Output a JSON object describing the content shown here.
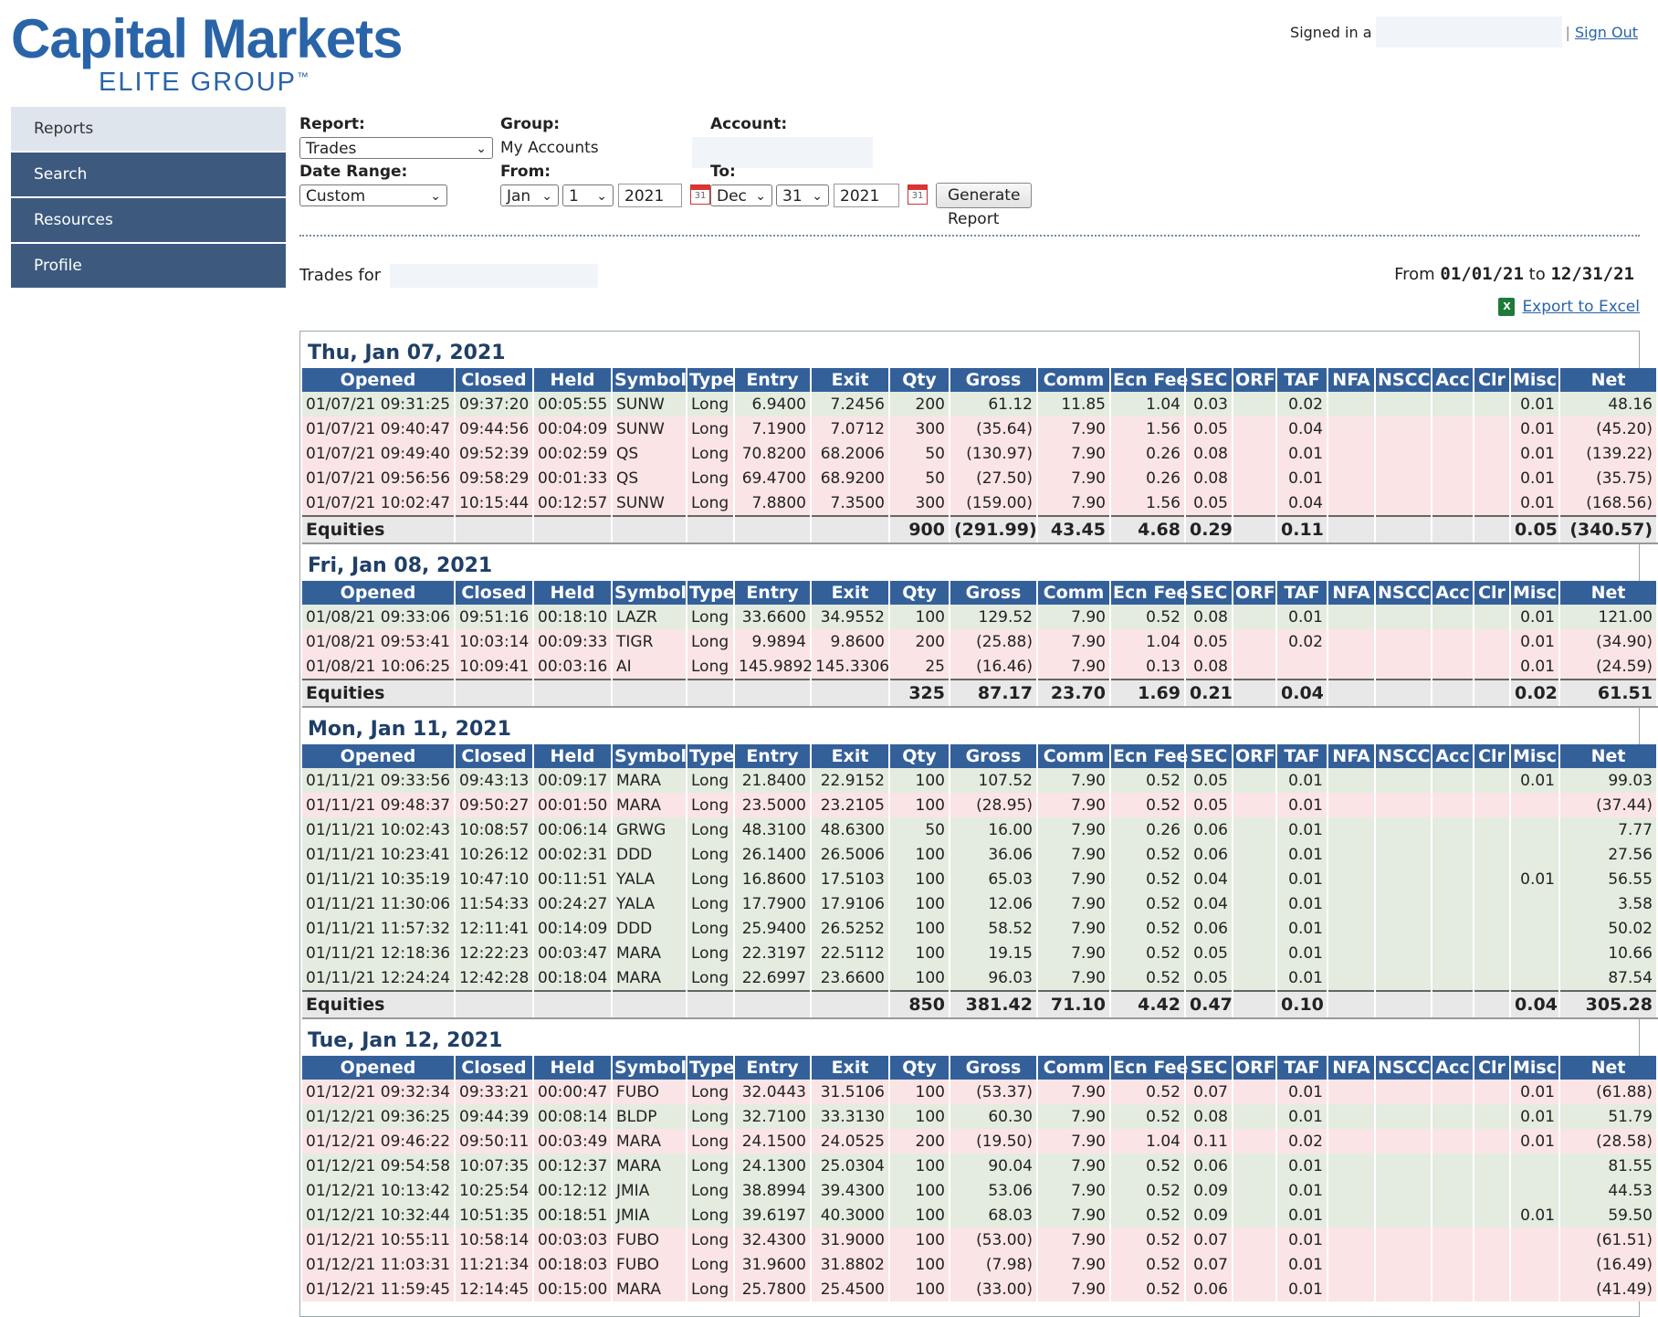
{
  "logo": {
    "main": "Capital Markets",
    "sub": "ELITE GROUP",
    "tm": "™"
  },
  "header": {
    "signed_in": "Signed in a",
    "sign_out": "Sign Out"
  },
  "nav": [
    {
      "label": "Reports",
      "active": true
    },
    {
      "label": "Search"
    },
    {
      "label": "Resources"
    },
    {
      "label": "Profile"
    }
  ],
  "form": {
    "report_label": "Report:",
    "report_value": "Trades",
    "group_label": "Group:",
    "group_value": "My Accounts",
    "account_label": "Account:",
    "date_range_label": "Date Range:",
    "date_range_value": "Custom",
    "from_label": "From:",
    "from_month": "Jan",
    "from_day": "1",
    "from_year": "2021",
    "to_label": "To:",
    "to_month": "Dec",
    "to_day": "31",
    "to_year": "2021",
    "calendar_day": "31",
    "generate_button": "Generate Report"
  },
  "summary": {
    "trades_for": "Trades for",
    "from_text": "From",
    "from_date": "01/01/21",
    "to_text": "to",
    "to_date": "12/31/21",
    "export": "Export to Excel"
  },
  "columns": [
    "Opened",
    "Closed",
    "Held",
    "Symbol",
    "Type",
    "Entry",
    "Exit",
    "Qty",
    "Gross",
    "Comm",
    "Ecn Fee",
    "SEC",
    "ORF",
    "TAF",
    "NFA",
    "NSCC",
    "Acc",
    "Clr",
    "Misc",
    "Net"
  ],
  "days": [
    {
      "title": "Thu, Jan 07, 2021",
      "rows": [
        [
          "01/07/21 09:31:25",
          "09:37:20",
          "00:05:55",
          "SUNW",
          "Long",
          "6.9400",
          "7.2456",
          "200",
          "61.12",
          "11.85",
          "1.04",
          "0.03",
          "",
          "0.02",
          "",
          "",
          "",
          "",
          "0.01",
          "48.16"
        ],
        [
          "01/07/21 09:40:47",
          "09:44:56",
          "00:04:09",
          "SUNW",
          "Long",
          "7.1900",
          "7.0712",
          "300",
          "(35.64)",
          "7.90",
          "1.56",
          "0.05",
          "",
          "0.04",
          "",
          "",
          "",
          "",
          "0.01",
          "(45.20)"
        ],
        [
          "01/07/21 09:49:40",
          "09:52:39",
          "00:02:59",
          "QS",
          "Long",
          "70.8200",
          "68.2006",
          "50",
          "(130.97)",
          "7.90",
          "0.26",
          "0.08",
          "",
          "0.01",
          "",
          "",
          "",
          "",
          "0.01",
          "(139.22)"
        ],
        [
          "01/07/21 09:56:56",
          "09:58:29",
          "00:01:33",
          "QS",
          "Long",
          "69.4700",
          "68.9200",
          "50",
          "(27.50)",
          "7.90",
          "0.26",
          "0.08",
          "",
          "0.01",
          "",
          "",
          "",
          "",
          "0.01",
          "(35.75)"
        ],
        [
          "01/07/21 10:02:47",
          "10:15:44",
          "00:12:57",
          "SUNW",
          "Long",
          "7.8800",
          "7.3500",
          "300",
          "(159.00)",
          "7.90",
          "1.56",
          "0.05",
          "",
          "0.04",
          "",
          "",
          "",
          "",
          "0.01",
          "(168.56)"
        ]
      ],
      "total": [
        "Equities",
        "",
        "",
        "",
        "",
        "",
        "",
        "900",
        "(291.99)",
        "43.45",
        "4.68",
        "0.29",
        "",
        "0.11",
        "",
        "",
        "",
        "",
        "0.05",
        "(340.57)"
      ]
    },
    {
      "title": "Fri, Jan 08, 2021",
      "rows": [
        [
          "01/08/21 09:33:06",
          "09:51:16",
          "00:18:10",
          "LAZR",
          "Long",
          "33.6600",
          "34.9552",
          "100",
          "129.52",
          "7.90",
          "0.52",
          "0.08",
          "",
          "0.01",
          "",
          "",
          "",
          "",
          "0.01",
          "121.00"
        ],
        [
          "01/08/21 09:53:41",
          "10:03:14",
          "00:09:33",
          "TIGR",
          "Long",
          "9.9894",
          "9.8600",
          "200",
          "(25.88)",
          "7.90",
          "1.04",
          "0.05",
          "",
          "0.02",
          "",
          "",
          "",
          "",
          "0.01",
          "(34.90)"
        ],
        [
          "01/08/21 10:06:25",
          "10:09:41",
          "00:03:16",
          "AI",
          "Long",
          "145.9892",
          "145.3306",
          "25",
          "(16.46)",
          "7.90",
          "0.13",
          "0.08",
          "",
          "",
          "",
          "",
          "",
          "",
          "0.01",
          "(24.59)"
        ]
      ],
      "total": [
        "Equities",
        "",
        "",
        "",
        "",
        "",
        "",
        "325",
        "87.17",
        "23.70",
        "1.69",
        "0.21",
        "",
        "0.04",
        "",
        "",
        "",
        "",
        "0.02",
        "61.51"
      ]
    },
    {
      "title": "Mon, Jan 11, 2021",
      "rows": [
        [
          "01/11/21 09:33:56",
          "09:43:13",
          "00:09:17",
          "MARA",
          "Long",
          "21.8400",
          "22.9152",
          "100",
          "107.52",
          "7.90",
          "0.52",
          "0.05",
          "",
          "0.01",
          "",
          "",
          "",
          "",
          "0.01",
          "99.03"
        ],
        [
          "01/11/21 09:48:37",
          "09:50:27",
          "00:01:50",
          "MARA",
          "Long",
          "23.5000",
          "23.2105",
          "100",
          "(28.95)",
          "7.90",
          "0.52",
          "0.05",
          "",
          "0.01",
          "",
          "",
          "",
          "",
          "",
          "(37.44)"
        ],
        [
          "01/11/21 10:02:43",
          "10:08:57",
          "00:06:14",
          "GRWG",
          "Long",
          "48.3100",
          "48.6300",
          "50",
          "16.00",
          "7.90",
          "0.26",
          "0.06",
          "",
          "0.01",
          "",
          "",
          "",
          "",
          "",
          "7.77"
        ],
        [
          "01/11/21 10:23:41",
          "10:26:12",
          "00:02:31",
          "DDD",
          "Long",
          "26.1400",
          "26.5006",
          "100",
          "36.06",
          "7.90",
          "0.52",
          "0.06",
          "",
          "0.01",
          "",
          "",
          "",
          "",
          "",
          "27.56"
        ],
        [
          "01/11/21 10:35:19",
          "10:47:10",
          "00:11:51",
          "YALA",
          "Long",
          "16.8600",
          "17.5103",
          "100",
          "65.03",
          "7.90",
          "0.52",
          "0.04",
          "",
          "0.01",
          "",
          "",
          "",
          "",
          "0.01",
          "56.55"
        ],
        [
          "01/11/21 11:30:06",
          "11:54:33",
          "00:24:27",
          "YALA",
          "Long",
          "17.7900",
          "17.9106",
          "100",
          "12.06",
          "7.90",
          "0.52",
          "0.04",
          "",
          "0.01",
          "",
          "",
          "",
          "",
          "",
          "3.58"
        ],
        [
          "01/11/21 11:57:32",
          "12:11:41",
          "00:14:09",
          "DDD",
          "Long",
          "25.9400",
          "26.5252",
          "100",
          "58.52",
          "7.90",
          "0.52",
          "0.06",
          "",
          "0.01",
          "",
          "",
          "",
          "",
          "",
          "50.02"
        ],
        [
          "01/11/21 12:18:36",
          "12:22:23",
          "00:03:47",
          "MARA",
          "Long",
          "22.3197",
          "22.5112",
          "100",
          "19.15",
          "7.90",
          "0.52",
          "0.05",
          "",
          "0.01",
          "",
          "",
          "",
          "",
          "",
          "10.66"
        ],
        [
          "01/11/21 12:24:24",
          "12:42:28",
          "00:18:04",
          "MARA",
          "Long",
          "22.6997",
          "23.6600",
          "100",
          "96.03",
          "7.90",
          "0.52",
          "0.05",
          "",
          "0.01",
          "",
          "",
          "",
          "",
          "",
          "87.54"
        ]
      ],
      "total": [
        "Equities",
        "",
        "",
        "",
        "",
        "",
        "",
        "850",
        "381.42",
        "71.10",
        "4.42",
        "0.47",
        "",
        "0.10",
        "",
        "",
        "",
        "",
        "0.04",
        "305.28"
      ]
    },
    {
      "title": "Tue, Jan 12, 2021",
      "rows": [
        [
          "01/12/21 09:32:34",
          "09:33:21",
          "00:00:47",
          "FUBO",
          "Long",
          "32.0443",
          "31.5106",
          "100",
          "(53.37)",
          "7.90",
          "0.52",
          "0.07",
          "",
          "0.01",
          "",
          "",
          "",
          "",
          "0.01",
          "(61.88)"
        ],
        [
          "01/12/21 09:36:25",
          "09:44:39",
          "00:08:14",
          "BLDP",
          "Long",
          "32.7100",
          "33.3130",
          "100",
          "60.30",
          "7.90",
          "0.52",
          "0.08",
          "",
          "0.01",
          "",
          "",
          "",
          "",
          "0.01",
          "51.79"
        ],
        [
          "01/12/21 09:46:22",
          "09:50:11",
          "00:03:49",
          "MARA",
          "Long",
          "24.1500",
          "24.0525",
          "200",
          "(19.50)",
          "7.90",
          "1.04",
          "0.11",
          "",
          "0.02",
          "",
          "",
          "",
          "",
          "0.01",
          "(28.58)"
        ],
        [
          "01/12/21 09:54:58",
          "10:07:35",
          "00:12:37",
          "MARA",
          "Long",
          "24.1300",
          "25.0304",
          "100",
          "90.04",
          "7.90",
          "0.52",
          "0.06",
          "",
          "0.01",
          "",
          "",
          "",
          "",
          "",
          "81.55"
        ],
        [
          "01/12/21 10:13:42",
          "10:25:54",
          "00:12:12",
          "JMIA",
          "Long",
          "38.8994",
          "39.4300",
          "100",
          "53.06",
          "7.90",
          "0.52",
          "0.09",
          "",
          "0.01",
          "",
          "",
          "",
          "",
          "",
          "44.53"
        ],
        [
          "01/12/21 10:32:44",
          "10:51:35",
          "00:18:51",
          "JMIA",
          "Long",
          "39.6197",
          "40.3000",
          "100",
          "68.03",
          "7.90",
          "0.52",
          "0.09",
          "",
          "0.01",
          "",
          "",
          "",
          "",
          "0.01",
          "59.50"
        ],
        [
          "01/12/21 10:55:11",
          "10:58:14",
          "00:03:03",
          "FUBO",
          "Long",
          "32.4300",
          "31.9000",
          "100",
          "(53.00)",
          "7.90",
          "0.52",
          "0.07",
          "",
          "0.01",
          "",
          "",
          "",
          "",
          "",
          "(61.51)"
        ],
        [
          "01/12/21 11:03:31",
          "11:21:34",
          "00:18:03",
          "FUBO",
          "Long",
          "31.9600",
          "31.8802",
          "100",
          "(7.98)",
          "7.90",
          "0.52",
          "0.07",
          "",
          "0.01",
          "",
          "",
          "",
          "",
          "",
          "(16.49)"
        ],
        [
          "01/12/21 11:59:45",
          "12:14:45",
          "00:15:00",
          "MARA",
          "Long",
          "25.7800",
          "25.4500",
          "100",
          "(33.00)",
          "7.90",
          "0.52",
          "0.06",
          "",
          "0.01",
          "",
          "",
          "",
          "",
          "",
          "(41.49)"
        ]
      ],
      "total": null
    }
  ]
}
